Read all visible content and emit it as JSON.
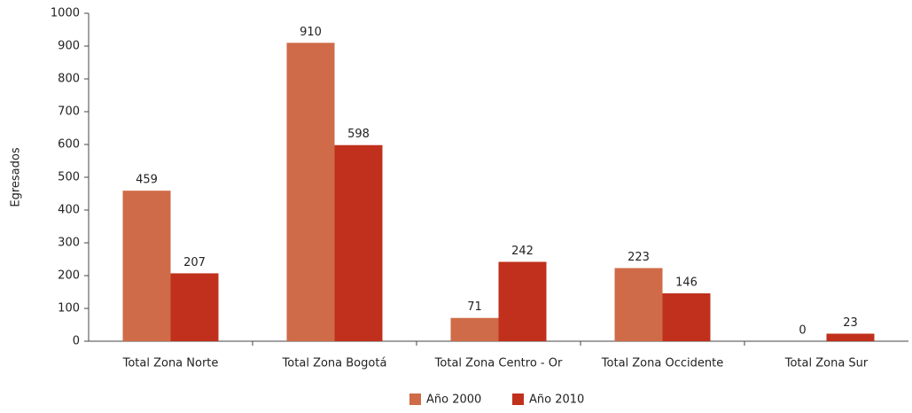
{
  "chart_data": {
    "type": "bar",
    "y_label": "Egresados",
    "categories": [
      "Total Zona Norte",
      "Total Zona Bogotá",
      "Total Zona Centro - Or",
      "Total Zona Occidente",
      "Total Zona Sur"
    ],
    "series": [
      {
        "name": "Año 2000",
        "color": "#cf6b48",
        "values": [
          459,
          910,
          71,
          223,
          0
        ]
      },
      {
        "name": "Año 2010",
        "color": "#c0301c",
        "values": [
          207,
          598,
          242,
          146,
          23
        ]
      }
    ],
    "ylim": [
      0,
      1000
    ],
    "yticks": [
      0,
      100,
      200,
      300,
      400,
      500,
      600,
      700,
      800,
      900,
      1000
    ],
    "legend": "bottom"
  }
}
